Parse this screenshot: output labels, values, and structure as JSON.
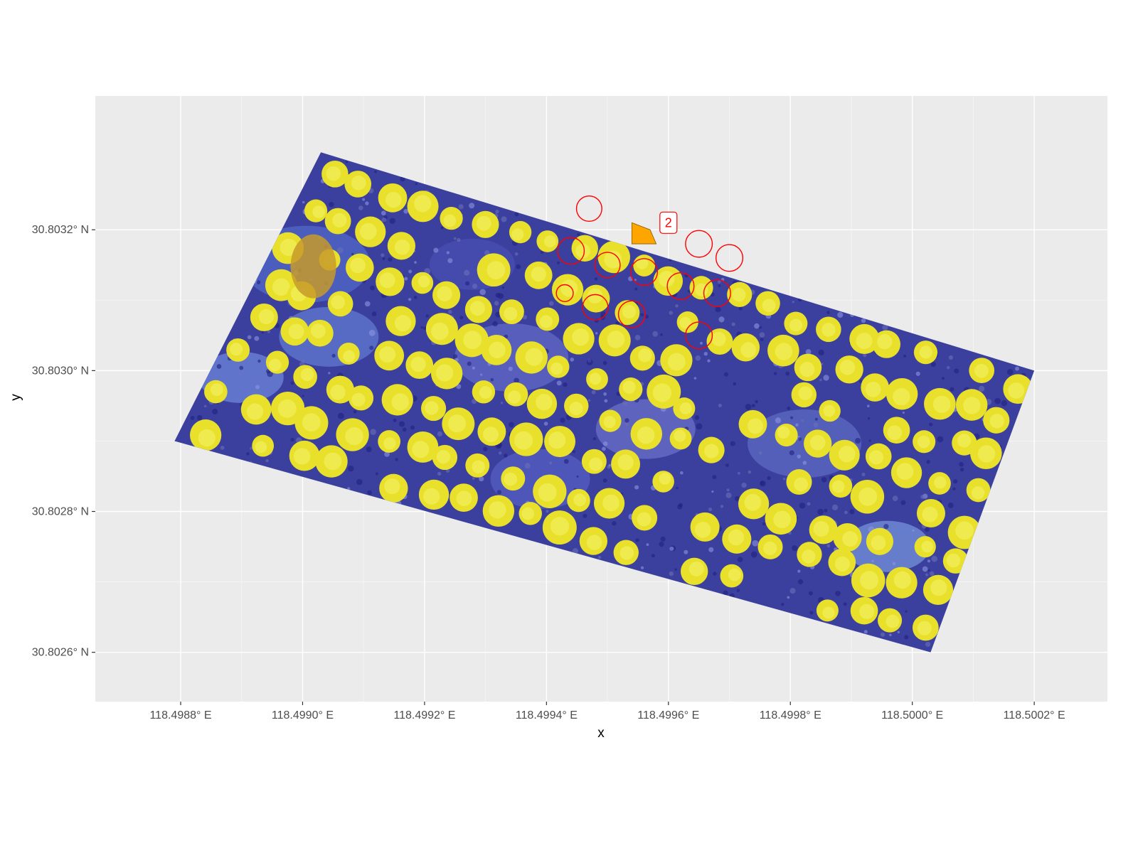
{
  "plot": {
    "xlabel": "x",
    "ylabel": "y",
    "panel_color": "#EBEBEB",
    "grid_color": "#FFFFFF"
  },
  "chart_data": {
    "type": "map",
    "crs": "geographic (lon/lat degrees)",
    "xlim": [
      118.49866,
      118.50032
    ],
    "ylim": [
      30.80253,
      30.80339
    ],
    "xticks": [
      118.4988,
      118.499,
      118.4992,
      118.4994,
      118.4996,
      118.4998,
      118.5,
      118.5002
    ],
    "xtick_labels": [
      "118.4988° E",
      "118.4990° E",
      "118.4992° E",
      "118.4994° E",
      "118.4996° E",
      "118.4998° E",
      "118.5000° E",
      "118.5002° E"
    ],
    "yticks": [
      30.8026,
      30.8028,
      30.803,
      30.8032
    ],
    "ytick_labels": [
      "30.8026° N",
      "30.8028° N",
      "30.8030° N",
      "30.8032° N"
    ],
    "grid": true,
    "raster": {
      "description": "false-color aerial orthophoto of a tree plantation",
      "corners": [
        [
          118.49903,
          30.80331
        ],
        [
          118.5002,
          30.803
        ],
        [
          118.50003,
          30.8026
        ],
        [
          118.49879,
          30.8029
        ]
      ],
      "background_color": "#3b3f9e",
      "crown_color": "#e8e02a"
    },
    "highlight_polygon": {
      "fill": "#FFA500",
      "label": "2",
      "label_color": "#FF0000",
      "label_position": [
        118.4996,
        30.80321
      ],
      "vertices": [
        [
          118.49954,
          30.80321
        ],
        [
          118.49957,
          30.8032
        ],
        [
          118.49958,
          30.80318
        ],
        [
          118.49954,
          30.80318
        ]
      ]
    },
    "crown_outline_color": "#FF0000",
    "crown_outlines": [
      {
        "center": [
          118.49947,
          30.80323
        ],
        "radius": 1.8e-05
      },
      {
        "center": [
          118.49965,
          30.80318
        ],
        "radius": 1.9e-05
      },
      {
        "center": [
          118.4997,
          30.80316
        ],
        "radius": 1.9e-05
      },
      {
        "center": [
          118.49944,
          30.80317
        ],
        "radius": 1.9e-05
      },
      {
        "center": [
          118.4995,
          30.80315
        ],
        "radius": 1.8e-05
      },
      {
        "center": [
          118.49956,
          30.80314
        ],
        "radius": 1.9e-05
      },
      {
        "center": [
          118.49962,
          30.80312
        ],
        "radius": 1.9e-05
      },
      {
        "center": [
          118.49968,
          30.80311
        ],
        "radius": 1.9e-05
      },
      {
        "center": [
          118.49943,
          30.80311
        ],
        "radius": 1.2e-05
      },
      {
        "center": [
          118.49948,
          30.80309
        ],
        "radius": 1.8e-05
      },
      {
        "center": [
          118.49954,
          30.80308
        ],
        "radius": 1.9e-05
      },
      {
        "center": [
          118.49965,
          30.80305
        ],
        "radius": 1.9e-05
      }
    ]
  }
}
